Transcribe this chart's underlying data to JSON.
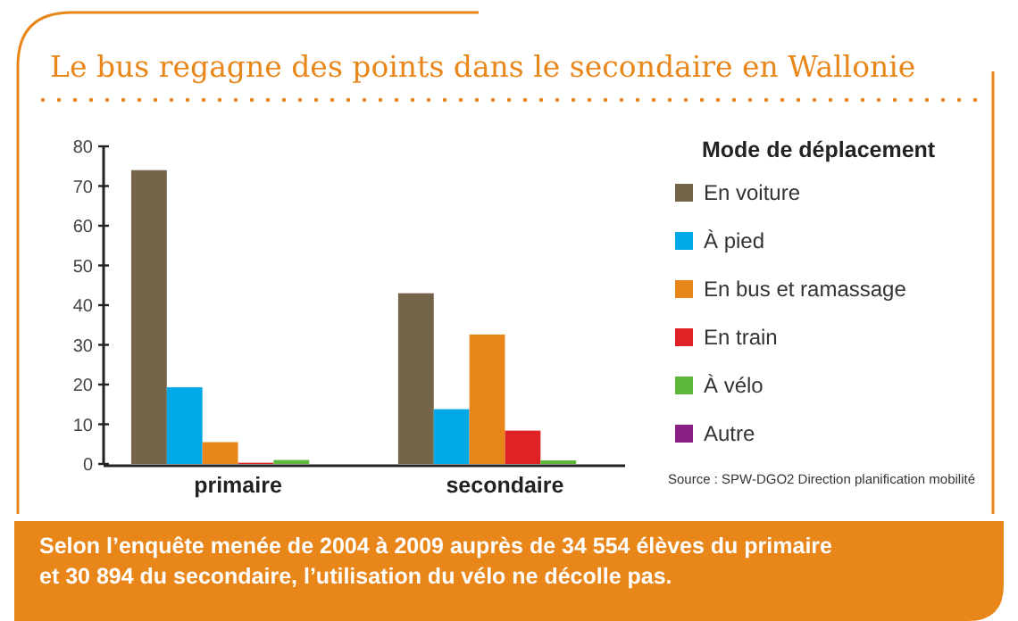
{
  "chart_data": {
    "type": "bar",
    "title": "Le bus regagne des points dans le secondaire en Wallonie",
    "legend_title": "Mode de déplacement",
    "categories": [
      "primaire",
      "secondaire"
    ],
    "series": [
      {
        "name": "En voiture",
        "color": "#73644a",
        "values": [
          74,
          43
        ]
      },
      {
        "name": "À pied",
        "color": "#00a8e8",
        "values": [
          19.3,
          13.8
        ]
      },
      {
        "name": "En bus et ramassage",
        "color": "#e8861a",
        "values": [
          5.5,
          32.6
        ]
      },
      {
        "name": "En train",
        "color": "#de2226",
        "values": [
          0.3,
          8.4
        ]
      },
      {
        "name": "À vélo",
        "color": "#5db83a",
        "values": [
          1,
          0.9
        ]
      },
      {
        "name": "Autre",
        "color": "#8c1f86",
        "values": [
          0,
          0
        ]
      }
    ],
    "ylim": [
      0,
      80
    ],
    "yticks": [
      0,
      10,
      20,
      30,
      40,
      50,
      60,
      70,
      80
    ],
    "grid": false,
    "legend": "right",
    "annotations": [
      "Source : SPW-DGO2 Direction planification mobilité",
      "Selon l’enquête menée de 2004 à 2009 auprès de 34 554 élèves du primaire et 30 894 du secondaire, l’utilisation du vélo ne décolle pas."
    ]
  }
}
